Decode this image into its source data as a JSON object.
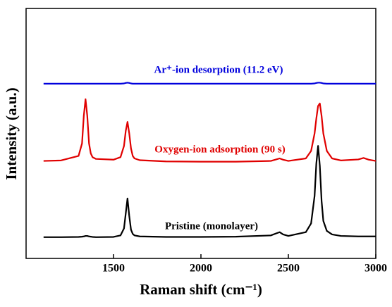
{
  "chart_data": {
    "type": "line",
    "xlabel": "Raman shift (cm⁻¹)",
    "ylabel": "Intensity (a.u.)",
    "x": [
      1100,
      1200,
      1300,
      1320,
      1330,
      1340,
      1350,
      1360,
      1370,
      1380,
      1400,
      1500,
      1540,
      1560,
      1570,
      1580,
      1590,
      1600,
      1610,
      1620,
      1650,
      1800,
      2000,
      2200,
      2400,
      2430,
      2450,
      2470,
      2500,
      2600,
      2630,
      2650,
      2660,
      2670,
      2680,
      2690,
      2700,
      2720,
      2750,
      2800,
      2900,
      2930,
      2960,
      3000
    ],
    "series": [
      {
        "name": "Pristine (monolayer)",
        "color": "#000000",
        "values": [
          8.5,
          8.5,
          8.6,
          8.7,
          8.8,
          9.0,
          9.0,
          8.8,
          8.7,
          8.6,
          8.5,
          8.6,
          9.2,
          12,
          18,
          24,
          17,
          11.5,
          9.8,
          9.2,
          8.8,
          8.6,
          8.6,
          8.7,
          9.2,
          10,
          10.5,
          9.6,
          9.0,
          10.5,
          14,
          25,
          38,
          45,
          37,
          23,
          15,
          11,
          9.6,
          9.0,
          8.8,
          8.8,
          8.8,
          8.8
        ]
      },
      {
        "name": "Oxygen-ion adsorption (90 s)",
        "color": "#e00000",
        "values": [
          39,
          39.2,
          41,
          46,
          57,
          63.7,
          57,
          46,
          42,
          40.5,
          39.8,
          39.5,
          40.5,
          45,
          51,
          54.6,
          50,
          44,
          41,
          40,
          39.3,
          38.8,
          38.7,
          38.7,
          39,
          39.6,
          40,
          39.5,
          39,
          40,
          43,
          50,
          56,
          61,
          62,
          57,
          50,
          43,
          40,
          39.2,
          39.6,
          40.2,
          39.5,
          39
        ]
      },
      {
        "name": "Ar⁺-ion desorption (11.2 eV)",
        "color": "#0000dd",
        "values": [
          69.9,
          69.9,
          69.9,
          69.9,
          69.9,
          69.9,
          69.9,
          69.9,
          69.9,
          69.9,
          69.9,
          69.9,
          69.9,
          70,
          70.2,
          70.3,
          70.2,
          70,
          69.9,
          69.9,
          69.9,
          69.9,
          69.9,
          69.9,
          69.9,
          69.9,
          69.9,
          69.9,
          69.9,
          69.9,
          69.9,
          70,
          70.2,
          70.3,
          70.3,
          70.2,
          70,
          69.9,
          69.9,
          69.9,
          69.9,
          69.9,
          69.9,
          69.9
        ]
      }
    ],
    "xlim": [
      1000,
      3000
    ],
    "xticks": [
      1500,
      2000,
      2500,
      3000
    ],
    "ylim": [
      0,
      100
    ]
  }
}
